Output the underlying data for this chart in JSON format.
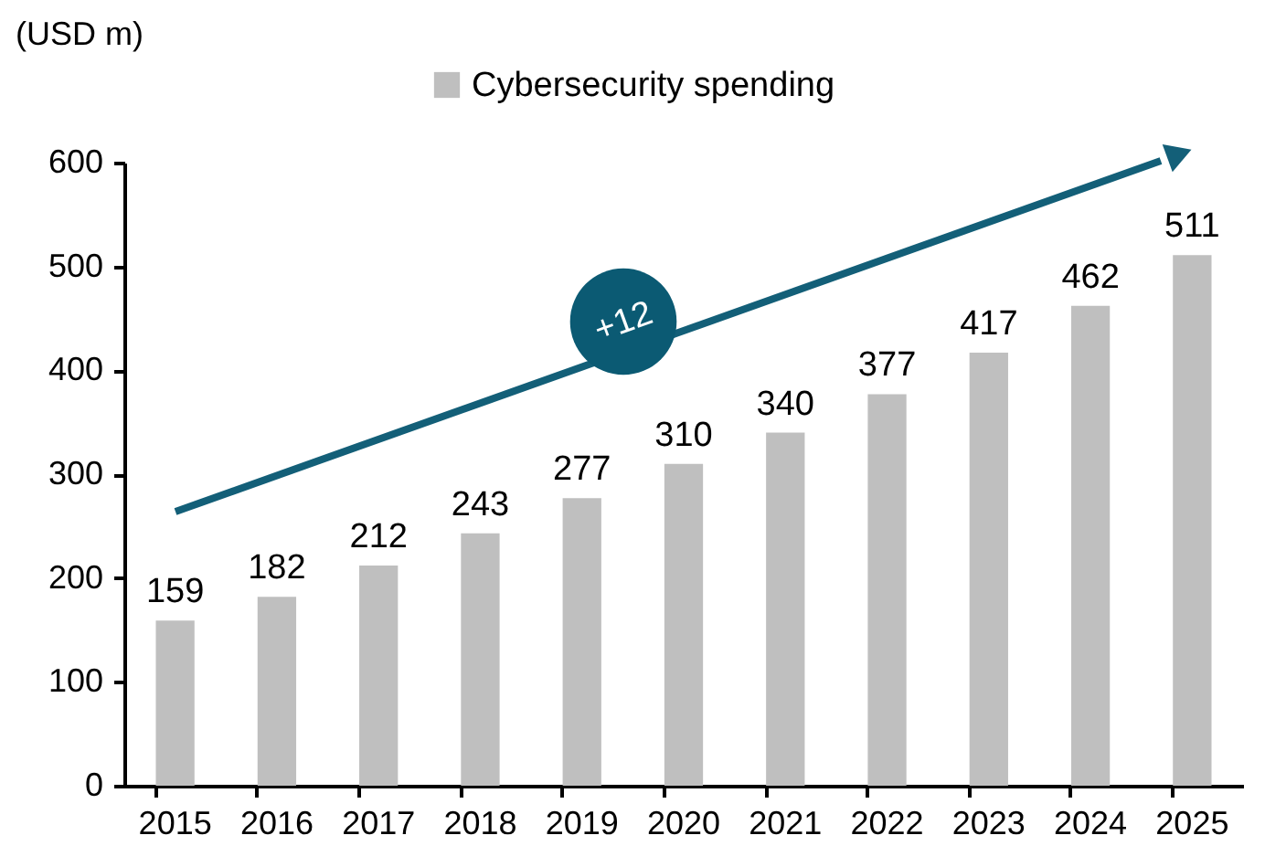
{
  "chart_data": {
    "type": "bar",
    "ylabel": "(USD m)",
    "categories": [
      "2015",
      "2016",
      "2017",
      "2018",
      "2019",
      "2020",
      "2021",
      "2022",
      "2023",
      "2024",
      "2025"
    ],
    "series": [
      {
        "name": "Cybersecurity spending",
        "color": "#bfbfbf",
        "values": [
          159,
          182,
          212,
          243,
          277,
          310,
          340,
          377,
          417,
          462,
          511
        ]
      }
    ],
    "ylim": [
      0,
      600
    ],
    "yticks": [
      0,
      100,
      200,
      300,
      400,
      500,
      600
    ],
    "data_labels": true,
    "grid": false,
    "legend": "top",
    "annotations": [
      "+12"
    ]
  }
}
